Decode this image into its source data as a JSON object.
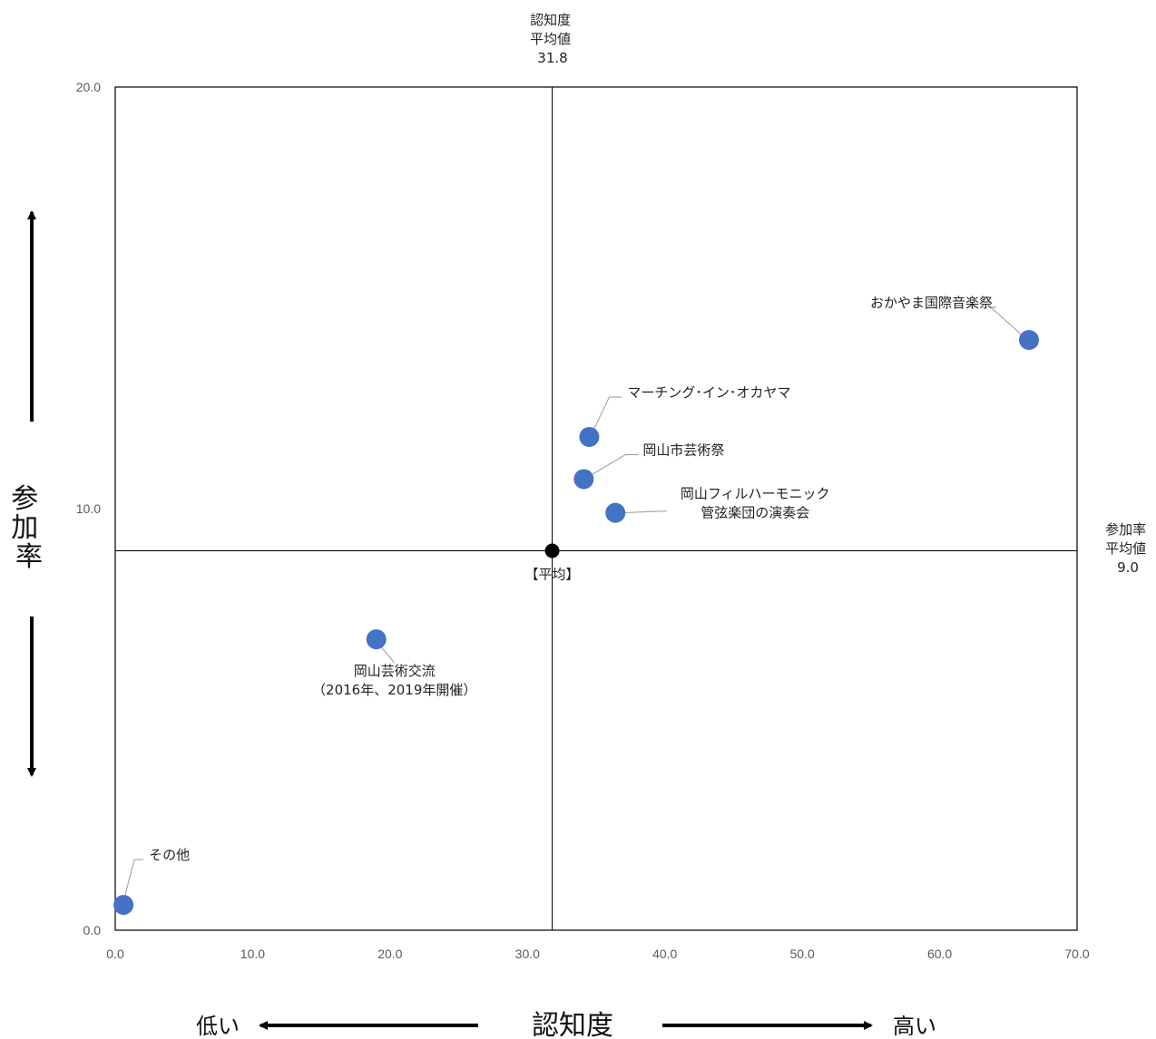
{
  "chart_data": {
    "type": "scatter",
    "xlim": [
      0,
      70
    ],
    "ylim": [
      0,
      20
    ],
    "x_ticks": [
      "0.0",
      "10.0",
      "20.0",
      "30.0",
      "40.0",
      "50.0",
      "60.0",
      "70.0"
    ],
    "y_ticks": [
      "0.0",
      "10.0",
      "20.0"
    ],
    "x_ticks_values": [
      0,
      10,
      20,
      30,
      40,
      50,
      60,
      70
    ],
    "y_ticks_values": [
      0,
      10,
      20
    ],
    "points": [
      {
        "label": [
          "おかやま国際音楽祭"
        ],
        "x": 66.5,
        "y": 14.0
      },
      {
        "label": [
          "マーチング･イン･オカヤマ"
        ],
        "x": 34.5,
        "y": 11.7
      },
      {
        "label": [
          "岡山市芸術祭"
        ],
        "x": 34.1,
        "y": 10.7
      },
      {
        "label": [
          "岡山フィルハーモニック",
          "管弦楽団の演奏会"
        ],
        "x": 36.4,
        "y": 9.9
      },
      {
        "label": [
          "岡山芸術交流",
          "（2016年、2019年開催）"
        ],
        "x": 19.0,
        "y": 6.9
      },
      {
        "label": [
          "その他"
        ],
        "x": 0.6,
        "y": 0.6
      }
    ],
    "average": {
      "label": "【平均】",
      "x": 31.8,
      "y": 9.0
    },
    "x_avg_annotation": [
      "認知度",
      "平均値",
      "31.8"
    ],
    "y_avg_annotation": [
      "参加率",
      "平均値",
      "9.0"
    ],
    "ylabel": [
      "参",
      "加",
      "率"
    ],
    "xlabel": "認知度",
    "x_low_label": "低い",
    "x_high_label": "高い",
    "point_color": "#4472C4",
    "average_color": "#000000"
  }
}
